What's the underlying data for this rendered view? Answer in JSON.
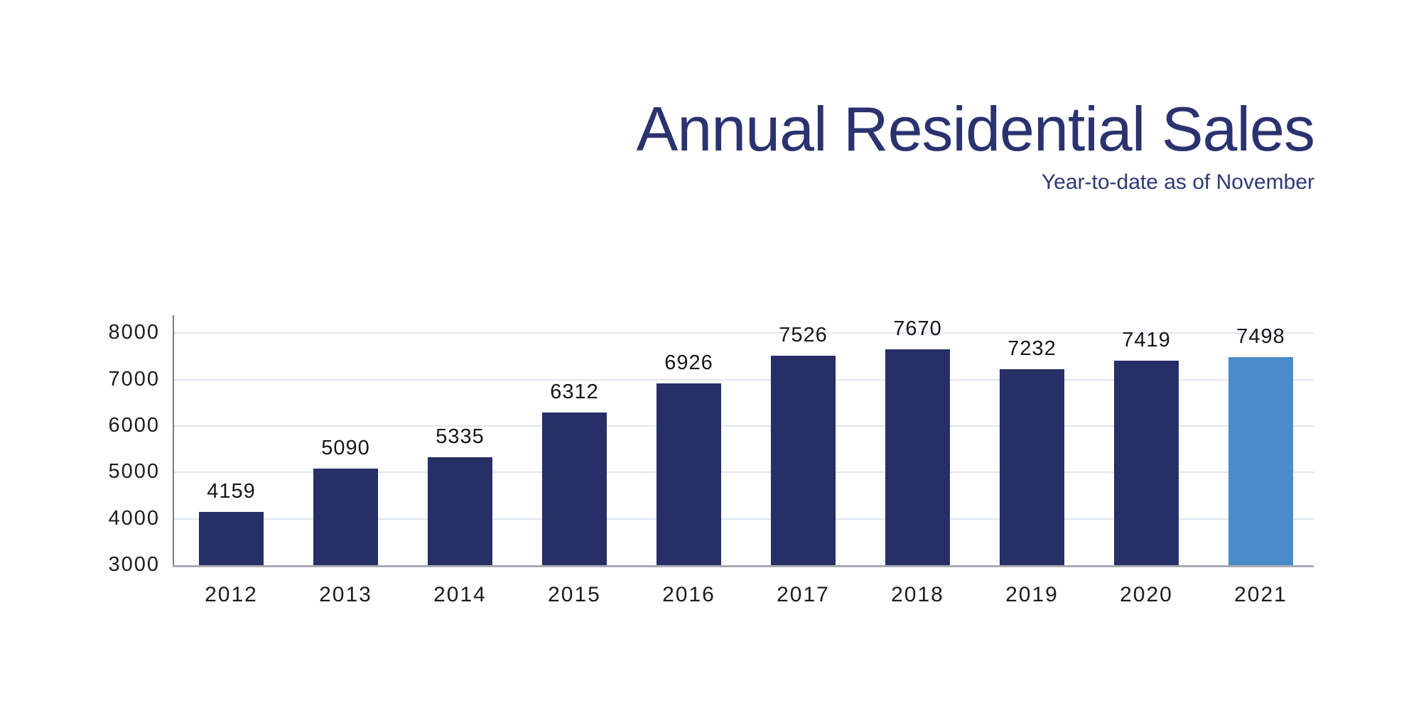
{
  "title": "Annual Residential Sales",
  "subtitle": "Year-to-date as of November",
  "chart_data": {
    "type": "bar",
    "title": "Annual Residential Sales",
    "subtitle": "Year-to-date as of November",
    "categories": [
      "2012",
      "2013",
      "2014",
      "2015",
      "2016",
      "2017",
      "2018",
      "2019",
      "2020",
      "2021"
    ],
    "values": [
      4159,
      5090,
      5335,
      6312,
      6926,
      7526,
      7670,
      7232,
      7419,
      7498
    ],
    "xlabel": "",
    "ylabel": "",
    "ylim": [
      3000,
      8400
    ],
    "yticks": [
      3000,
      4000,
      5000,
      6000,
      7000,
      8000
    ],
    "grid": true,
    "data_labels": true,
    "legend": false,
    "highlight_index": 9,
    "colors": {
      "bar": "#262F66",
      "highlight_bar": "#4A8CC9",
      "gridline": "#E0E6F1",
      "axis_line": "#7D7D80",
      "baseline": "#A9ABB3",
      "title_text": "#2A336F",
      "subtitle_text": "#2E3875",
      "tick_text": "#1C1C1C",
      "value_label_text": "#161616"
    }
  }
}
